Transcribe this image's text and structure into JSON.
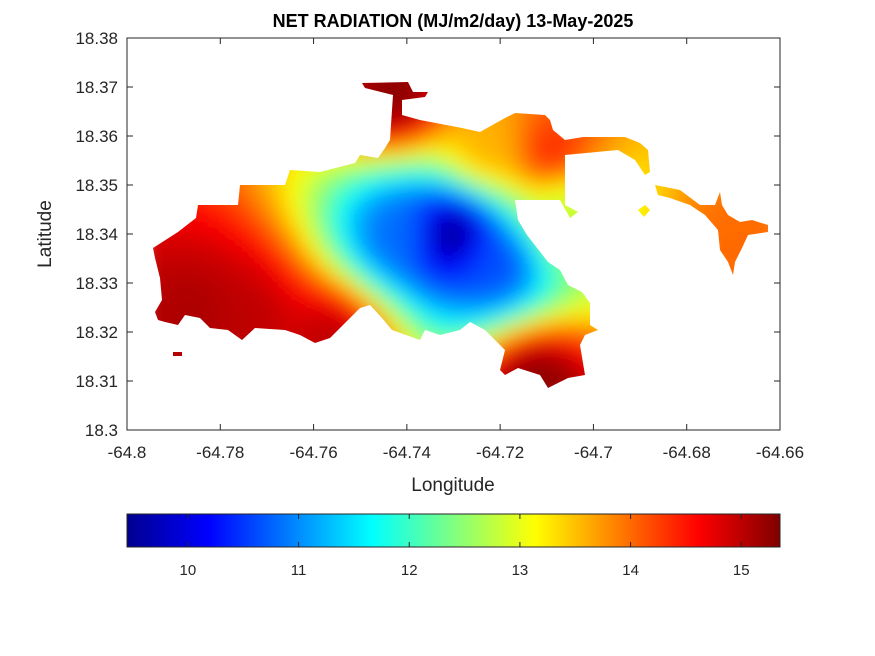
{
  "chart_data": {
    "type": "heatmap",
    "title": "NET RADIATION (MJ/m2/day) 13-May-2025",
    "xlabel": "Longitude",
    "ylabel": "Latitude",
    "xlim": [
      -64.8,
      -64.66
    ],
    "ylim": [
      18.3,
      18.38
    ],
    "x_ticks": [
      "-64.8",
      "-64.78",
      "-64.76",
      "-64.74",
      "-64.72",
      "-64.7",
      "-64.68",
      "-64.66"
    ],
    "y_ticks": [
      "18.3",
      "18.31",
      "18.32",
      "18.33",
      "18.34",
      "18.35",
      "18.36",
      "18.37",
      "18.38"
    ],
    "colormap": "jet",
    "clim": [
      9.45,
      15.35
    ],
    "colorbar_ticks": [
      "10",
      "11",
      "12",
      "13",
      "14",
      "15"
    ],
    "colorbar_location": "bottom",
    "grid": false,
    "field_peaks": [
      {
        "lon": -64.731,
        "lat": 18.3405,
        "value": 9.5
      },
      {
        "lon": -64.742,
        "lat": 18.3405,
        "value": 10.8
      },
      {
        "lon": -64.722,
        "lat": 18.3345,
        "value": 10.6
      },
      {
        "lon": -64.786,
        "lat": 18.3235,
        "value": 15.1
      },
      {
        "lon": -64.776,
        "lat": 18.323,
        "value": 15.0
      },
      {
        "lon": -64.757,
        "lat": 18.3185,
        "value": 15.0
      },
      {
        "lon": -64.713,
        "lat": 18.31,
        "value": 15.3
      },
      {
        "lon": -64.743,
        "lat": 18.3695,
        "value": 15.3
      },
      {
        "lon": -64.723,
        "lat": 18.3585,
        "value": 13.6
      },
      {
        "lon": -64.71,
        "lat": 18.3575,
        "value": 14.4
      },
      {
        "lon": -64.671,
        "lat": 18.3385,
        "value": 14.0
      },
      {
        "lon": -64.706,
        "lat": 18.3445,
        "value": 12.8
      }
    ]
  }
}
